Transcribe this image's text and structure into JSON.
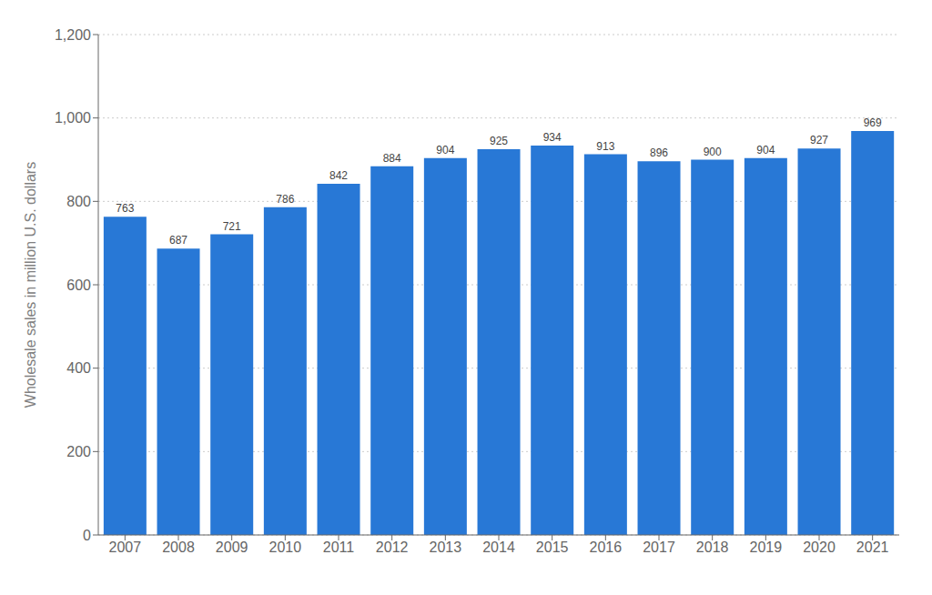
{
  "chart_data": {
    "type": "bar",
    "ylabel": "Wholesale sales in million U.S. dollars",
    "categories": [
      "2007",
      "2008",
      "2009",
      "2010",
      "2011",
      "2012",
      "2013",
      "2014",
      "2015",
      "2016",
      "2017",
      "2018",
      "2019",
      "2020",
      "2021"
    ],
    "values": [
      763,
      687,
      721,
      786,
      842,
      884,
      904,
      925,
      934,
      913,
      896,
      900,
      904,
      927,
      969
    ],
    "color": "#2878d6",
    "ylim": [
      0,
      1200
    ],
    "yticks": [
      0,
      200,
      400,
      600,
      800,
      {
        "value": 1000,
        "label": "1,000"
      },
      {
        "value": 1200,
        "label": "1,200"
      }
    ],
    "grid": true,
    "data_labels": true
  }
}
